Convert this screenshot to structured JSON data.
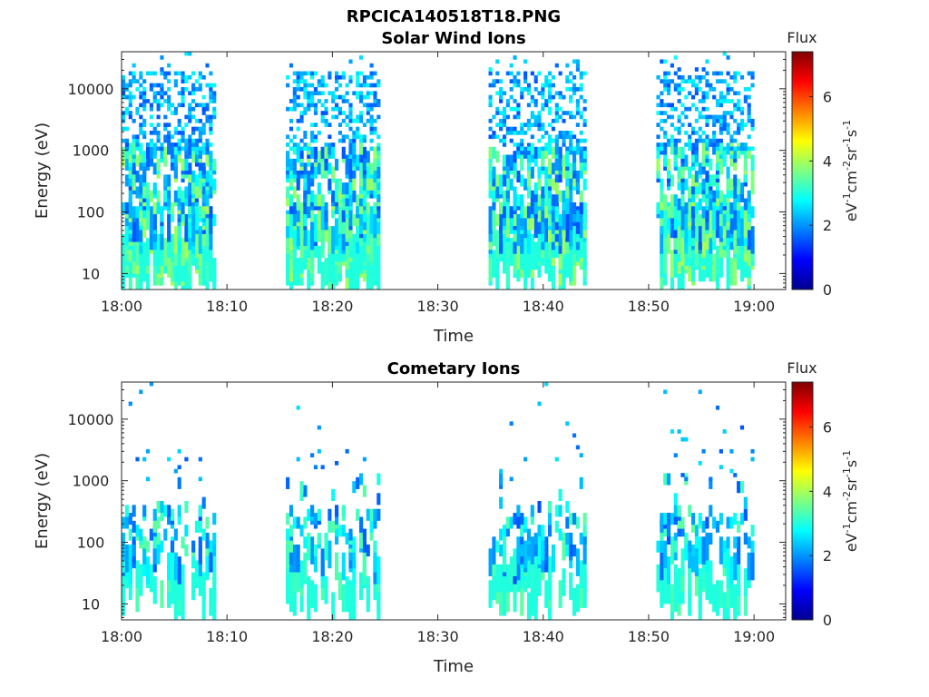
{
  "figure": {
    "filename": "RPCICA140518T18.PNG"
  },
  "chart_data": [
    {
      "type": "heatmap",
      "title": "Solar Wind Ions",
      "xlabel": "Time",
      "ylabel": "Energy (eV)",
      "x_ticks": [
        "18:00",
        "18:10",
        "18:20",
        "18:30",
        "18:40",
        "18:50",
        "19:00"
      ],
      "x_range_minutes": [
        0,
        63
      ],
      "y_scale": "log",
      "y_ticks": [
        {
          "value": 10,
          "label": "10"
        },
        {
          "value": 100,
          "label": "100"
        },
        {
          "value": 1000,
          "label": "1000"
        },
        {
          "value": 10000,
          "label": "10000"
        }
      ],
      "y_range": [
        5.5,
        40000
      ],
      "colorbar": {
        "title": "Flux",
        "units": [
          "eV",
          "-1",
          "cm",
          "-2",
          "sr",
          "-1",
          "s",
          "-1"
        ],
        "range": [
          0,
          7.4
        ],
        "ticks": [
          "0",
          "2",
          "4",
          "6"
        ],
        "colormap": "jet"
      },
      "data_intervals_minutes": [
        [
          0,
          8.8
        ],
        [
          15.5,
          24.5
        ],
        [
          34.5,
          44
        ],
        [
          50.5,
          60
        ]
      ],
      "density": "high",
      "value_range": [
        1.5,
        4.0
      ],
      "seed": 11
    },
    {
      "type": "heatmap",
      "title": "Cometary Ions",
      "xlabel": "Time",
      "ylabel": "Energy (eV)",
      "x_ticks": [
        "18:00",
        "18:10",
        "18:20",
        "18:30",
        "18:40",
        "18:50",
        "19:00"
      ],
      "x_range_minutes": [
        0,
        63
      ],
      "y_scale": "log",
      "y_ticks": [
        {
          "value": 10,
          "label": "10"
        },
        {
          "value": 100,
          "label": "100"
        },
        {
          "value": 1000,
          "label": "1000"
        },
        {
          "value": 10000,
          "label": "10000"
        }
      ],
      "y_range": [
        5.5,
        40000
      ],
      "colorbar": {
        "title": "Flux",
        "units": [
          "eV",
          "-1",
          "cm",
          "-2",
          "sr",
          "-1",
          "s",
          "-1"
        ],
        "range": [
          0,
          7.4
        ],
        "ticks": [
          "0",
          "2",
          "4",
          "6"
        ],
        "colormap": "jet"
      },
      "data_intervals_minutes": [
        [
          0,
          8.8
        ],
        [
          15.5,
          24.5
        ],
        [
          34.5,
          44
        ],
        [
          50.5,
          60
        ]
      ],
      "density": "low",
      "value_range": [
        1.5,
        3.5
      ],
      "seed": 29
    }
  ]
}
